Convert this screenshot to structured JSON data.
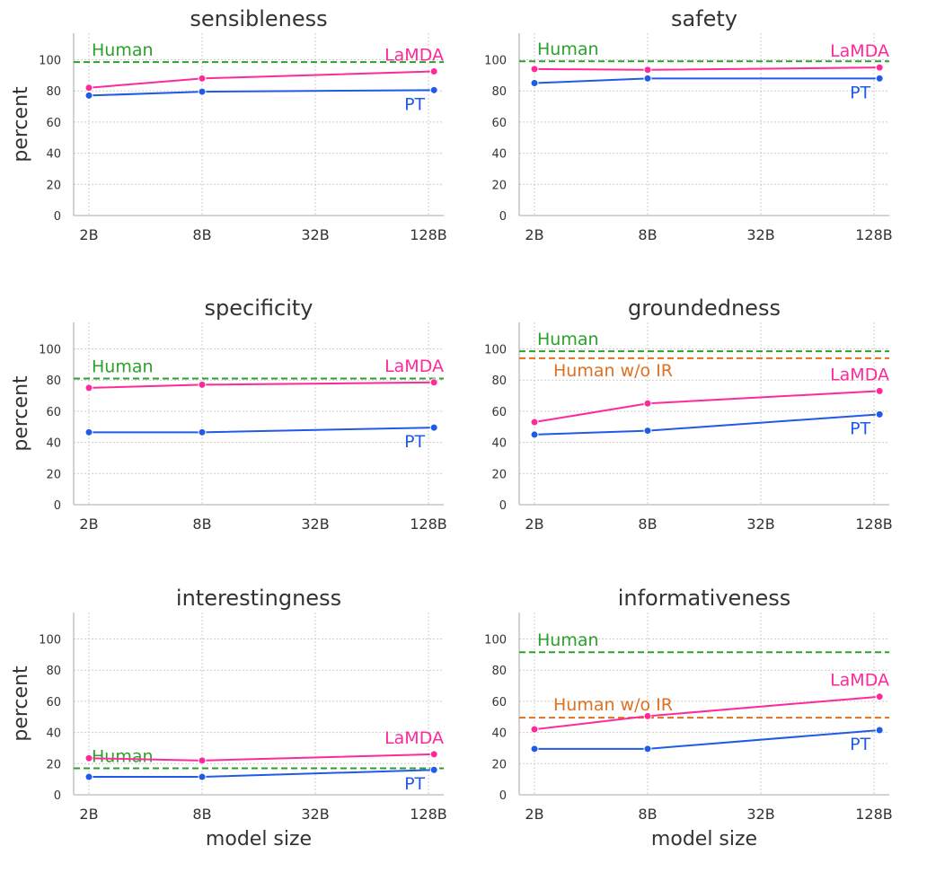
{
  "colors": {
    "LaMDA": "#ff2a9a",
    "PT": "#1f5be6",
    "Human": "#2ca02c",
    "Human w/o IR": "#e07020"
  },
  "chart_data": [
    {
      "type": "line",
      "title": "sensibleness",
      "xlabel": "",
      "ylabel": "percent",
      "categories": [
        "2B",
        "8B",
        "32B",
        "128B"
      ],
      "x": [
        2,
        8,
        137
      ],
      "ylim": [
        0,
        117
      ],
      "yticks": [
        0,
        20,
        40,
        60,
        80,
        100
      ],
      "grid": true,
      "series": [
        {
          "name": "LaMDA",
          "values": [
            82,
            88,
            92.5
          ]
        },
        {
          "name": "PT",
          "values": [
            77,
            79.5,
            80.5
          ]
        }
      ],
      "hlines": [
        {
          "name": "Human",
          "value": 98.5
        }
      ]
    },
    {
      "type": "line",
      "title": "safety",
      "xlabel": "",
      "ylabel": "",
      "categories": [
        "2B",
        "8B",
        "32B",
        "128B"
      ],
      "x": [
        2,
        8,
        137
      ],
      "ylim": [
        0,
        117
      ],
      "yticks": [
        0,
        20,
        40,
        60,
        80,
        100
      ],
      "grid": true,
      "series": [
        {
          "name": "LaMDA",
          "values": [
            94,
            93.5,
            95
          ]
        },
        {
          "name": "PT",
          "values": [
            85,
            88,
            88
          ]
        }
      ],
      "hlines": [
        {
          "name": "Human",
          "value": 99
        }
      ]
    },
    {
      "type": "line",
      "title": "specificity",
      "xlabel": "",
      "ylabel": "percent",
      "categories": [
        "2B",
        "8B",
        "32B",
        "128B"
      ],
      "x": [
        2,
        8,
        137
      ],
      "ylim": [
        0,
        117
      ],
      "yticks": [
        0,
        20,
        40,
        60,
        80,
        100
      ],
      "grid": true,
      "series": [
        {
          "name": "LaMDA",
          "values": [
            75,
            77,
            78.5
          ]
        },
        {
          "name": "PT",
          "values": [
            46.5,
            46.5,
            49.5
          ]
        }
      ],
      "hlines": [
        {
          "name": "Human",
          "value": 81
        }
      ]
    },
    {
      "type": "line",
      "title": "groundedness",
      "xlabel": "",
      "ylabel": "",
      "categories": [
        "2B",
        "8B",
        "32B",
        "128B"
      ],
      "x": [
        2,
        8,
        137
      ],
      "ylim": [
        0,
        117
      ],
      "yticks": [
        0,
        20,
        40,
        60,
        80,
        100
      ],
      "grid": true,
      "series": [
        {
          "name": "LaMDA",
          "values": [
            53,
            65,
            73
          ]
        },
        {
          "name": "PT",
          "values": [
            45,
            47.5,
            58
          ]
        }
      ],
      "hlines": [
        {
          "name": "Human",
          "value": 98.5
        },
        {
          "name": "Human w/o IR",
          "value": 94
        }
      ]
    },
    {
      "type": "line",
      "title": "interestingness",
      "xlabel": "model size",
      "ylabel": "percent",
      "categories": [
        "2B",
        "8B",
        "32B",
        "128B"
      ],
      "x": [
        2,
        8,
        137
      ],
      "ylim": [
        0,
        117
      ],
      "yticks": [
        0,
        20,
        40,
        60,
        80,
        100
      ],
      "grid": true,
      "series": [
        {
          "name": "LaMDA",
          "values": [
            23.5,
            22,
            26
          ]
        },
        {
          "name": "PT",
          "values": [
            11.5,
            11.5,
            16
          ]
        }
      ],
      "hlines": [
        {
          "name": "Human",
          "value": 17
        }
      ]
    },
    {
      "type": "line",
      "title": "informativeness",
      "xlabel": "model size",
      "ylabel": "",
      "categories": [
        "2B",
        "8B",
        "32B",
        "128B"
      ],
      "x": [
        2,
        8,
        137
      ],
      "ylim": [
        0,
        117
      ],
      "yticks": [
        0,
        20,
        40,
        60,
        80,
        100
      ],
      "grid": true,
      "series": [
        {
          "name": "LaMDA",
          "values": [
            42,
            50.5,
            63
          ]
        },
        {
          "name": "PT",
          "values": [
            29.5,
            29.5,
            41.5
          ]
        }
      ],
      "hlines": [
        {
          "name": "Human",
          "value": 91.5
        },
        {
          "name": "Human w/o IR",
          "value": 49.5
        }
      ]
    }
  ]
}
